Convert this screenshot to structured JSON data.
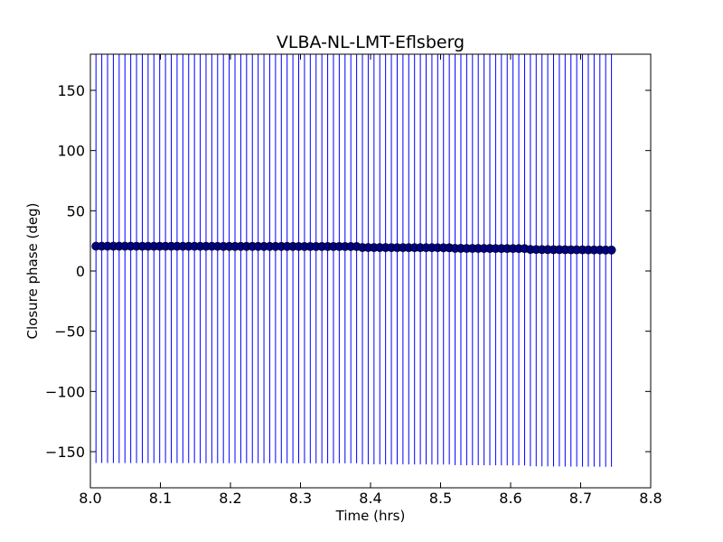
{
  "chart_data": {
    "type": "scatter",
    "title": "VLBA-NL-LMT-Eflsberg",
    "xlabel": "Time (hrs)",
    "ylabel": "Closure phase (deg)",
    "xlim": [
      8.0,
      8.8
    ],
    "ylim": [
      -180,
      180
    ],
    "xticks": [
      8.0,
      8.1,
      8.2,
      8.3,
      8.4,
      8.5,
      8.6,
      8.7,
      8.8
    ],
    "xtick_labels": [
      "8.0",
      "8.1",
      "8.2",
      "8.3",
      "8.4",
      "8.5",
      "8.6",
      "8.7",
      "8.8"
    ],
    "yticks": [
      150,
      100,
      50,
      0,
      -50,
      -100,
      -150
    ],
    "ytick_labels": [
      "150",
      "100",
      "50",
      "0",
      "−50",
      "−100",
      "−150"
    ],
    "grid": false,
    "legend": "none",
    "colors": {
      "marker": "#00007f",
      "errorbar": "#0000ff",
      "axes": "#000000"
    },
    "series": [
      {
        "x_start": 8.008,
        "x_end": 8.744,
        "count": 90,
        "segments": [
          {
            "x_from": 8.008,
            "x_to": 8.385,
            "y_from": 20.6,
            "y_to": 20.3
          },
          {
            "x_from": 8.385,
            "x_to": 8.52,
            "y_from": 19.5,
            "y_to": 19.3
          },
          {
            "x_from": 8.52,
            "x_to": 8.62,
            "y_from": 18.8,
            "y_to": 18.6
          },
          {
            "x_from": 8.62,
            "x_to": 8.744,
            "y_from": 17.9,
            "y_to": 17.4
          }
        ],
        "error": 180
      }
    ]
  }
}
